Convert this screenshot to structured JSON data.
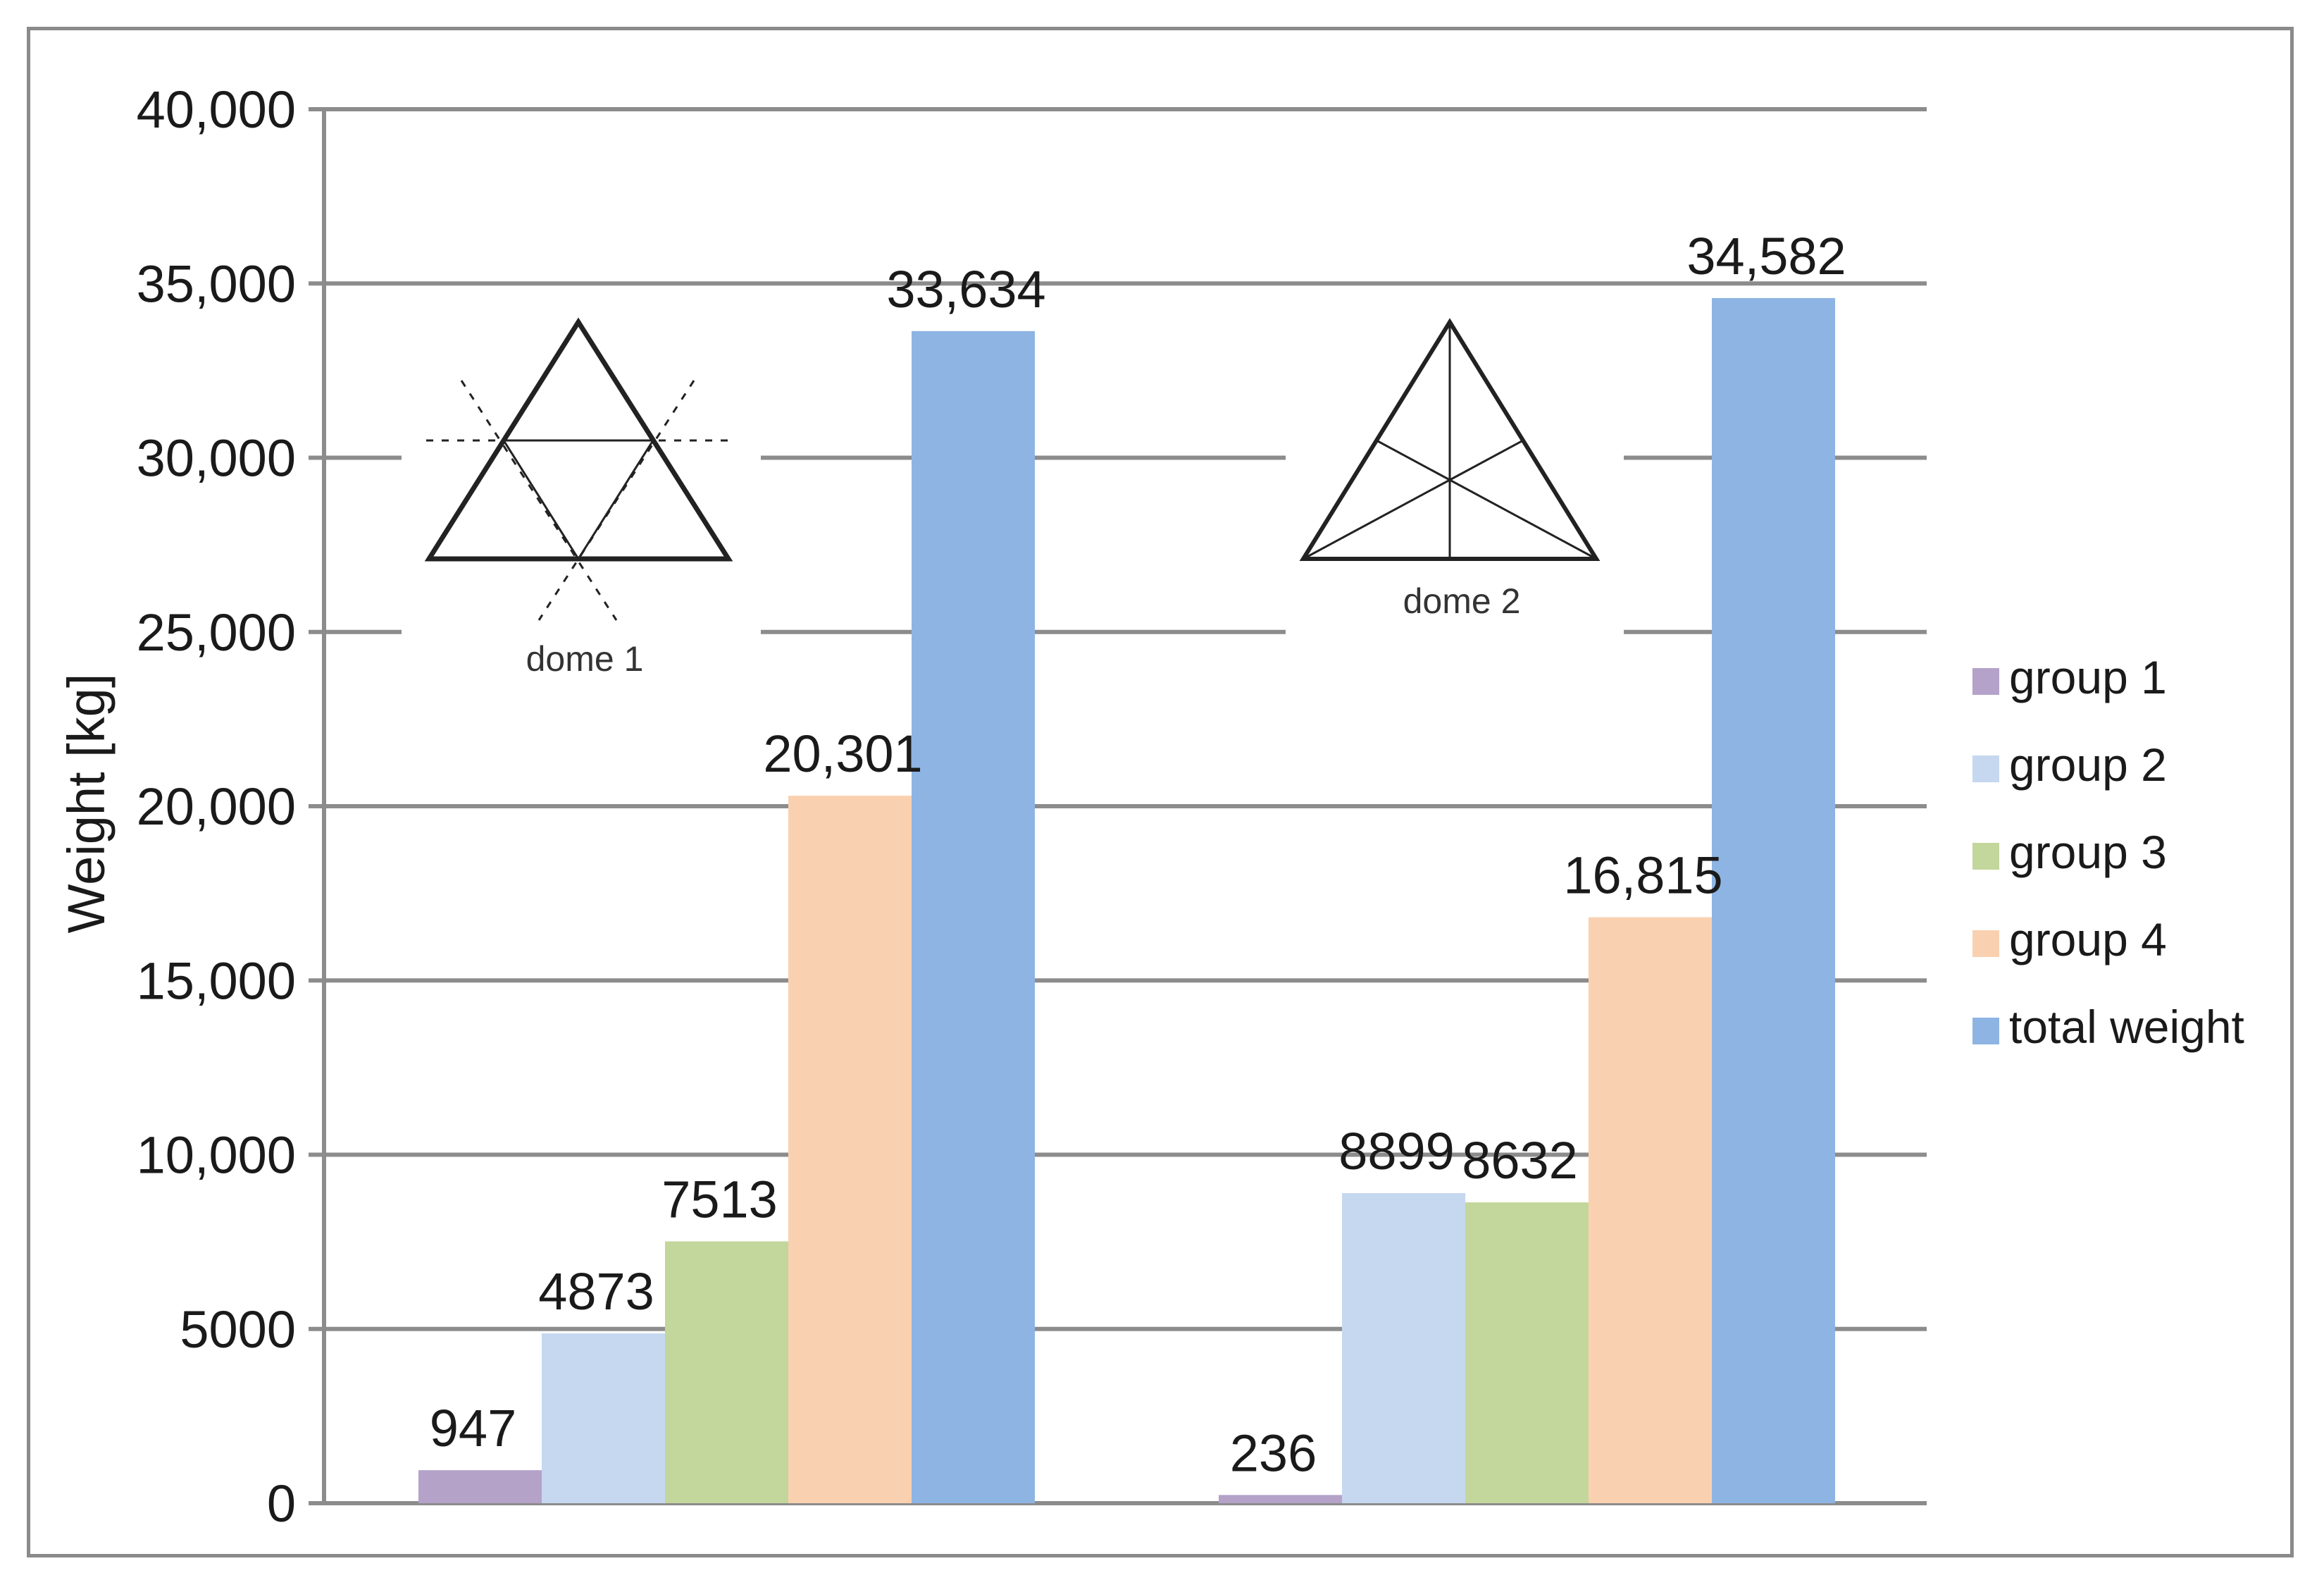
{
  "chart_data": {
    "type": "bar",
    "title": "",
    "xlabel": "",
    "ylabel": "Weight [kg]",
    "ylim": [
      0,
      40000
    ],
    "yticks": [
      0,
      5000,
      10000,
      15000,
      20000,
      25000,
      30000,
      35000,
      40000
    ],
    "ytick_labels": [
      "0",
      "5000",
      "10,000",
      "15,000",
      "20,000",
      "25,000",
      "30,000",
      "35,000",
      "40,000"
    ],
    "grid": true,
    "legend_position": "right",
    "groups": [
      {
        "label": "dome 1"
      },
      {
        "label": "dome 2"
      }
    ],
    "series": [
      {
        "name": "group 1",
        "color": "#b4a2c9",
        "values": [
          947,
          236
        ],
        "labels": [
          "947",
          "236"
        ]
      },
      {
        "name": "group 2",
        "color": "#c6d8ef",
        "values": [
          4873,
          8899
        ],
        "labels": [
          "4873",
          "8899"
        ]
      },
      {
        "name": "group 3",
        "color": "#c3d69b",
        "values": [
          7513,
          8632
        ],
        "labels": [
          "7513",
          "8632"
        ]
      },
      {
        "name": "group 4",
        "color": "#fad1b0",
        "values": [
          20301,
          16815
        ],
        "labels": [
          "20,301",
          "16,815"
        ]
      },
      {
        "name": "total weight",
        "color": "#8eb4e3",
        "values": [
          33634,
          34582
        ],
        "labels": [
          "33,634",
          "34,582"
        ]
      }
    ]
  }
}
